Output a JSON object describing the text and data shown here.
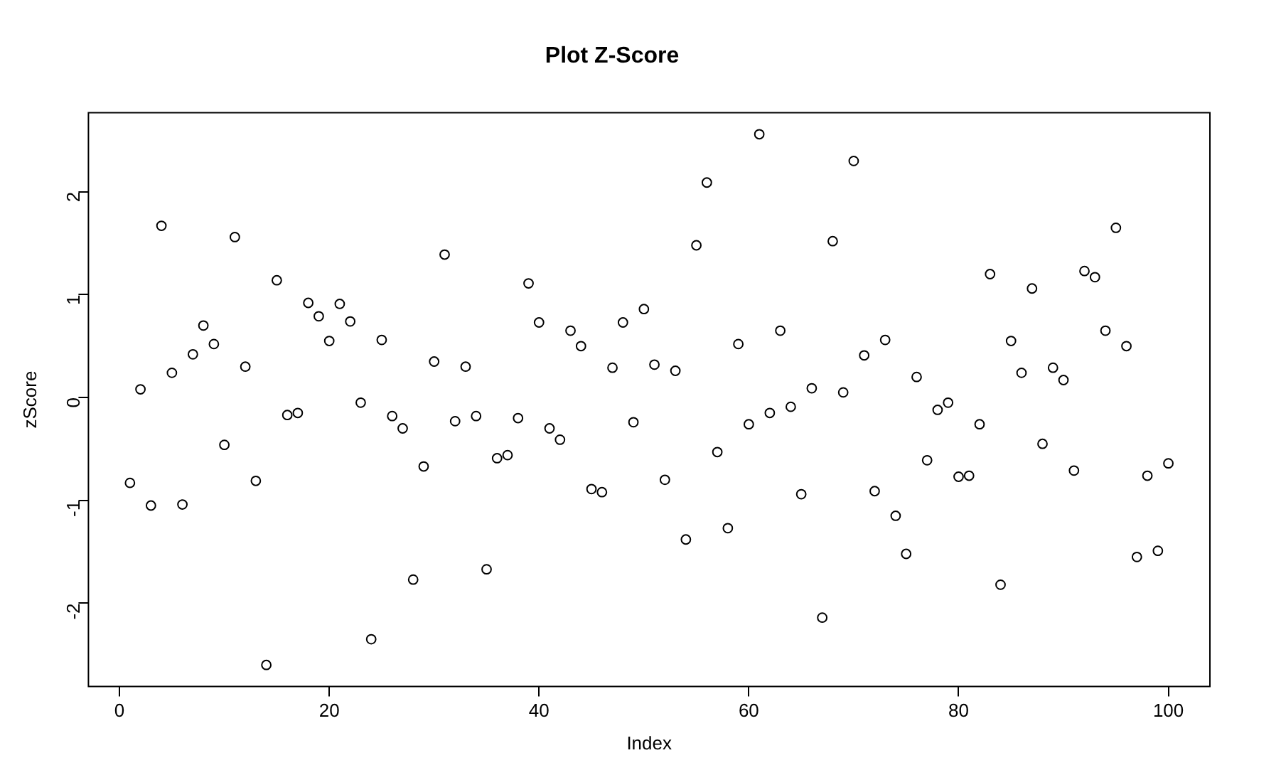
{
  "chart_data": {
    "type": "scatter",
    "title": "Plot Z-Score",
    "xlabel": "Index",
    "ylabel": "zScore",
    "x": [
      1,
      2,
      3,
      4,
      5,
      6,
      7,
      8,
      9,
      10,
      11,
      12,
      13,
      14,
      15,
      16,
      17,
      18,
      19,
      20,
      21,
      22,
      23,
      24,
      25,
      26,
      27,
      28,
      29,
      30,
      31,
      32,
      33,
      34,
      35,
      36,
      37,
      38,
      39,
      40,
      41,
      42,
      43,
      44,
      45,
      46,
      47,
      48,
      49,
      50,
      51,
      52,
      53,
      54,
      55,
      56,
      57,
      58,
      59,
      60,
      61,
      62,
      63,
      64,
      65,
      66,
      67,
      68,
      69,
      70,
      71,
      72,
      73,
      74,
      75,
      76,
      77,
      78,
      79,
      80,
      81,
      82,
      83,
      84,
      85,
      86,
      87,
      88,
      89,
      90,
      91,
      92,
      93,
      94,
      95,
      96,
      97,
      98,
      99,
      100
    ],
    "values": [
      -0.83,
      0.08,
      -1.05,
      1.67,
      0.24,
      -1.04,
      0.42,
      0.7,
      0.52,
      -0.46,
      1.56,
      0.3,
      -0.81,
      -2.6,
      1.14,
      -0.17,
      -0.15,
      0.92,
      0.79,
      0.55,
      0.91,
      0.74,
      -0.05,
      -2.35,
      0.56,
      -0.18,
      -0.3,
      -1.77,
      -0.67,
      0.35,
      1.39,
      -0.23,
      0.3,
      -0.18,
      -1.67,
      -0.59,
      -0.56,
      -0.2,
      1.11,
      0.73,
      -0.3,
      -0.41,
      0.65,
      0.5,
      -0.89,
      -0.92,
      0.29,
      0.73,
      -0.24,
      0.86,
      0.32,
      -0.8,
      0.26,
      -1.38,
      1.48,
      2.09,
      -0.53,
      -1.27,
      0.52,
      -0.26,
      2.56,
      -0.15,
      0.65,
      -0.09,
      -0.94,
      0.09,
      -2.14,
      1.52,
      0.05,
      2.3,
      0.41,
      -0.91,
      0.56,
      -1.15,
      -1.52,
      0.2,
      -0.61,
      -0.12,
      -0.05,
      -0.77,
      -0.76,
      -0.26,
      1.2,
      -1.82,
      0.55,
      0.24,
      1.06,
      -0.45,
      0.29,
      0.17,
      -0.71,
      1.23,
      1.17,
      0.65,
      1.65,
      0.5,
      -1.55,
      -0.76,
      -1.49,
      -0.64
    ],
    "color": "#000000",
    "marker": "circle",
    "grid": false,
    "legend": false,
    "xlim": [
      -2.96,
      103.96
    ],
    "ylim": [
      -2.81,
      2.77
    ],
    "xticks": [
      0,
      20,
      40,
      60,
      80,
      100
    ],
    "yticks": [
      -2,
      -1,
      0,
      1,
      2
    ]
  }
}
